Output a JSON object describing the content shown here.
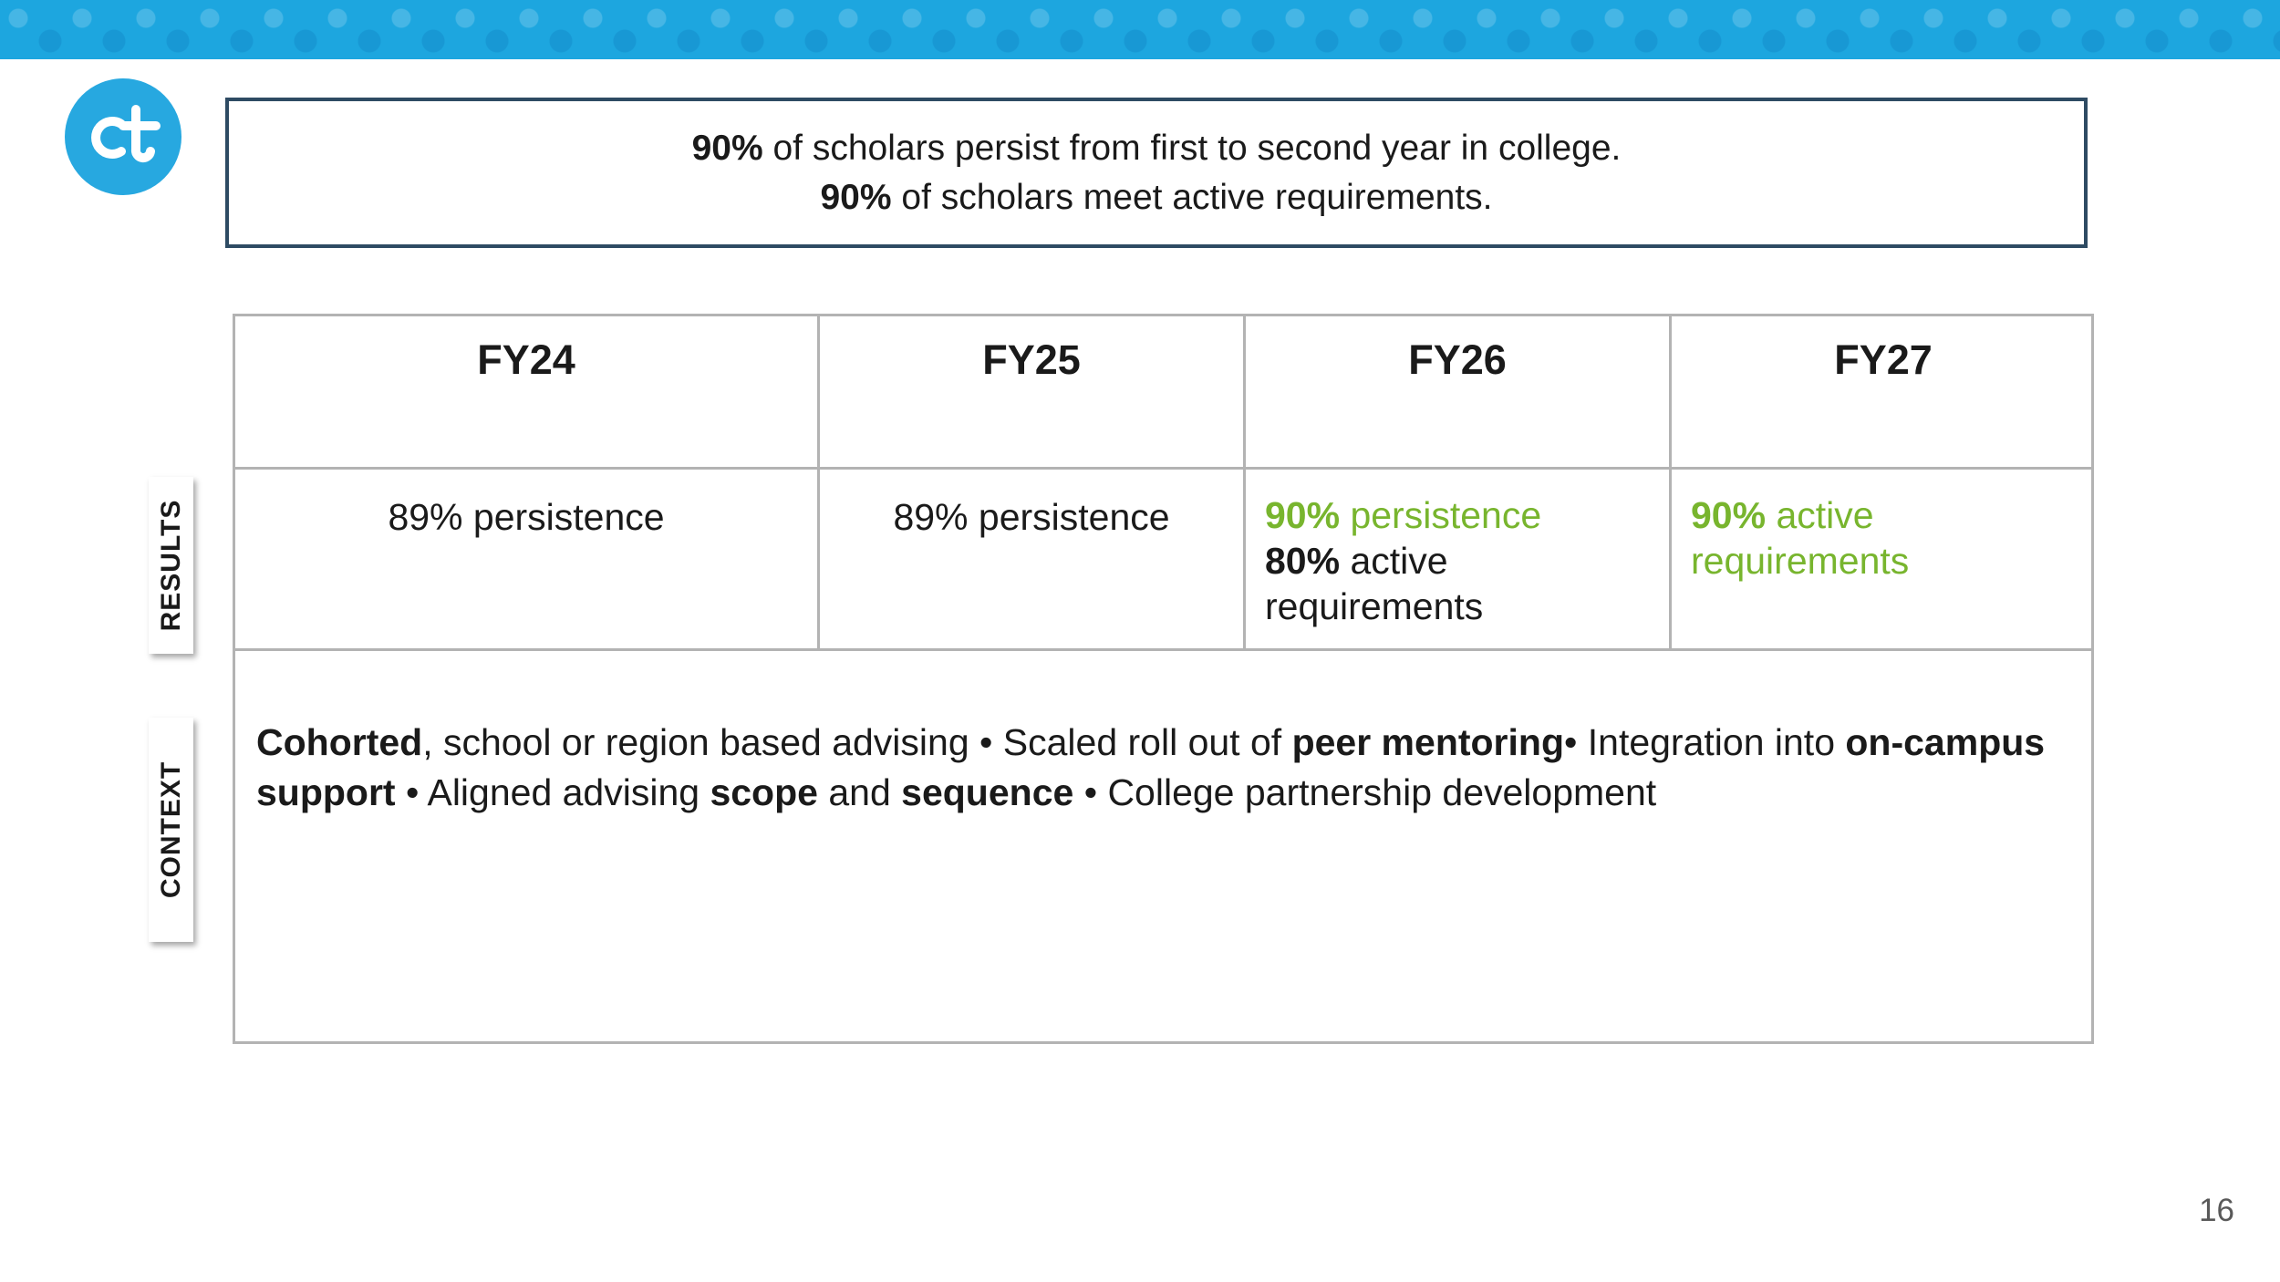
{
  "callout": {
    "lines": [
      [
        {
          "text": "90%",
          "bold": true
        },
        {
          "text": " of scholars persist from first to second year in college."
        }
      ],
      [
        {
          "text": "90%",
          "bold": true
        },
        {
          "text": " of scholars meet active requirements."
        }
      ]
    ]
  },
  "side_labels": [
    "RESULTS",
    "CONTEXT"
  ],
  "table": {
    "headers": [
      "FY24",
      "FY25",
      "FY26",
      "FY27"
    ],
    "results": [
      [
        [
          {
            "text": "89% persistence"
          }
        ]
      ],
      [
        [
          {
            "text": "89% persistence"
          }
        ]
      ],
      [
        [
          {
            "text": "90%",
            "bold": true,
            "color": "#78b52e"
          },
          {
            "text": " persistence",
            "color": "#78b52e"
          }
        ],
        [
          {
            "text": "80%",
            "bold": true
          },
          {
            "text": " active requirements"
          }
        ]
      ],
      [
        [
          {
            "text": "90%",
            "bold": true,
            "color": "#78b52e"
          },
          {
            "text": " active requirements",
            "color": "#78b52e"
          }
        ]
      ]
    ],
    "context": [
      {
        "text": "Cohorted",
        "bold": true
      },
      {
        "text": ", school or region based advising • Scaled roll out of "
      },
      {
        "text": "peer mentoring",
        "bold": true
      },
      {
        "text": "• Integration into "
      },
      {
        "text": "on-campus support",
        "bold": true
      },
      {
        "text": " • Aligned advising "
      },
      {
        "text": "scope",
        "bold": true
      },
      {
        "text": " and "
      },
      {
        "text": "sequence",
        "bold": true
      },
      {
        "text": " • College partnership development"
      }
    ]
  },
  "page_number": 16
}
